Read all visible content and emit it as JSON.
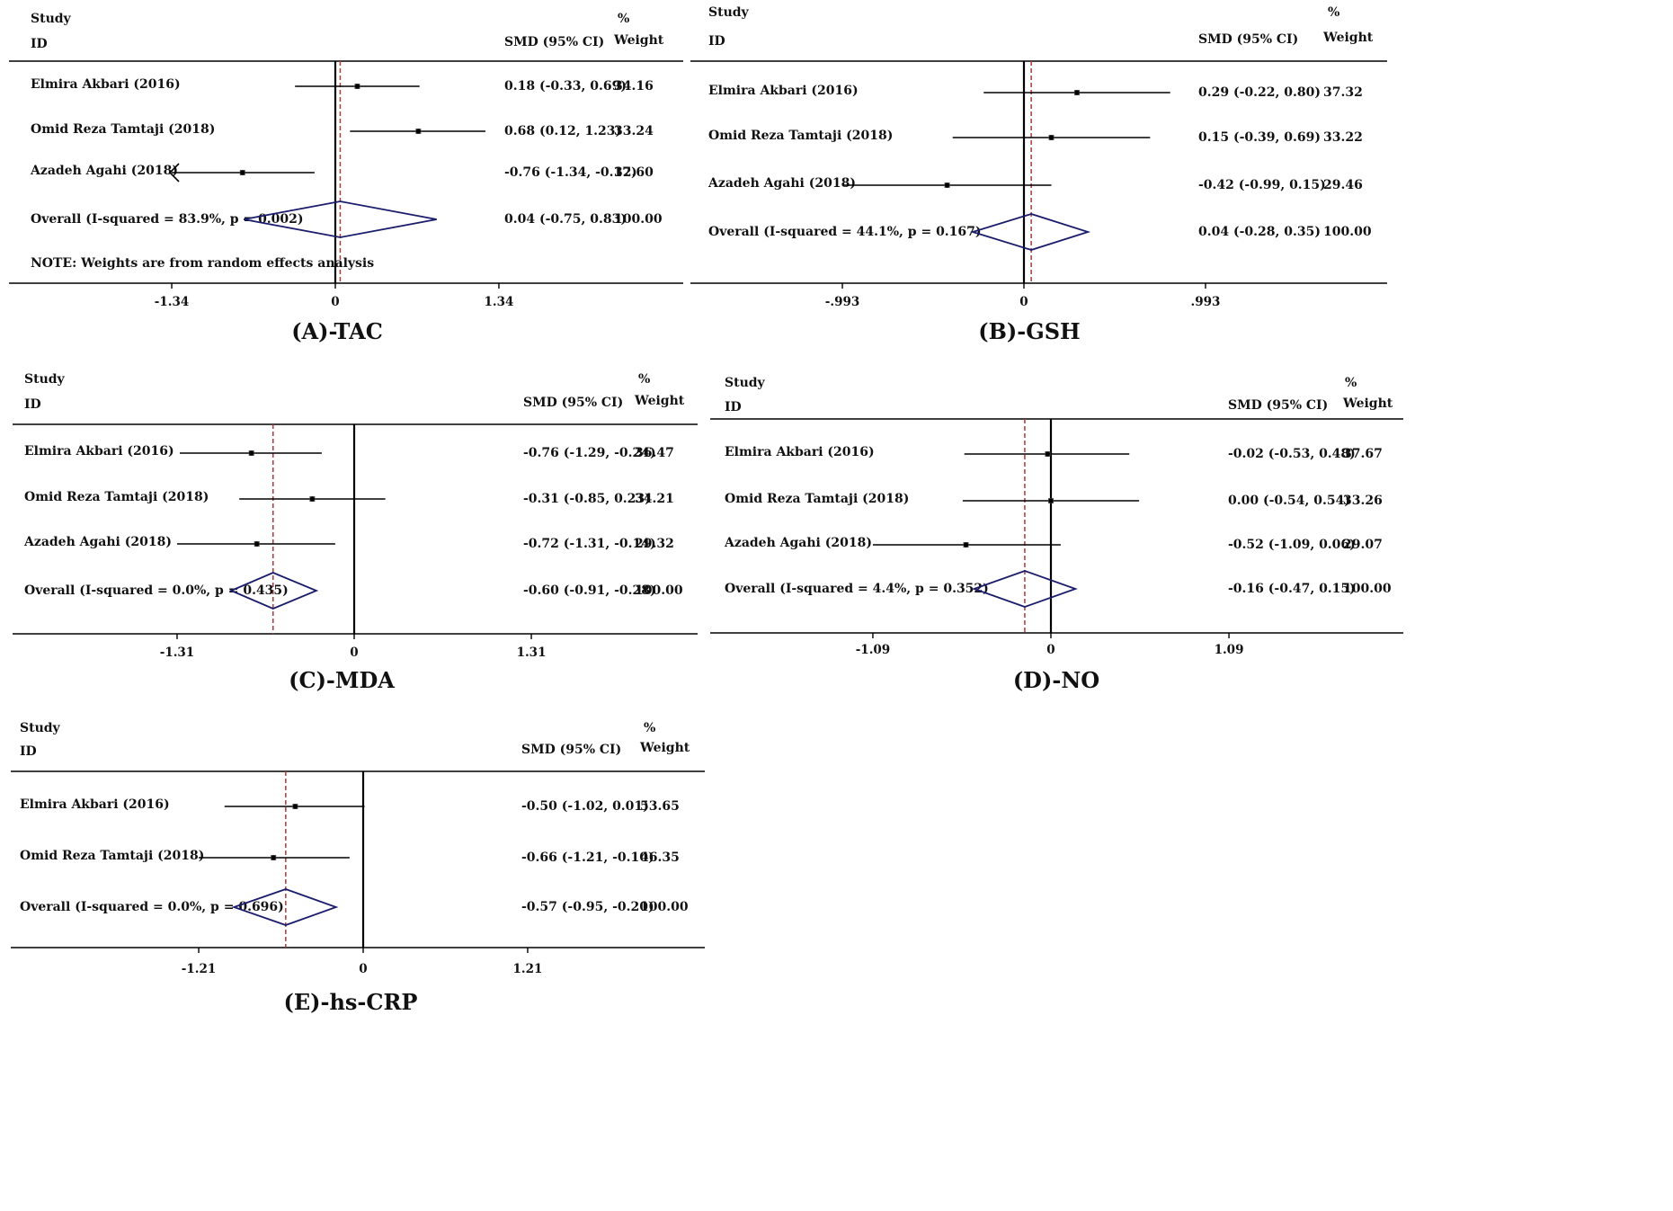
{
  "chart_data": [
    {
      "type": "forest",
      "caption": "(A)-TAC",
      "header": {
        "study": "Study",
        "id": "ID",
        "effect": "SMD (95% CI)",
        "pct": "%",
        "weight": "Weight"
      },
      "studies": [
        {
          "label": "Elmira Akbari (2016)",
          "smd": 0.18,
          "lo": -0.33,
          "hi": 0.69,
          "ci_text": "0.18 (-0.33, 0.69)",
          "weight": "34.16"
        },
        {
          "label": "Omid Reza Tamtaji (2018)",
          "smd": 0.68,
          "lo": 0.12,
          "hi": 1.23,
          "ci_text": "0.68 (0.12, 1.23)",
          "weight": "33.24"
        },
        {
          "label": "Azadeh Agahi (2018)",
          "smd": -0.76,
          "lo": -1.34,
          "hi": -0.17,
          "ci_text": "-0.76 (-1.34, -0.17)",
          "weight": "32.60"
        }
      ],
      "overall": {
        "label": "Overall (I-squared = 83.9%, p = 0.002)",
        "smd": 0.04,
        "lo": -0.75,
        "hi": 0.83,
        "ci_text": "0.04 (-0.75, 0.83)",
        "weight": "100.00"
      },
      "note": "NOTE: Weights are from random effects analysis",
      "axis": {
        "min": -1.34,
        "max": 1.34,
        "ticks": [
          "-1.34",
          "0",
          "1.34"
        ]
      }
    },
    {
      "type": "forest",
      "caption": "(B)-GSH",
      "header": {
        "study": "Study",
        "id": "ID",
        "effect": "SMD (95% CI)",
        "pct": "%",
        "weight": "Weight"
      },
      "studies": [
        {
          "label": "Elmira Akbari (2016)",
          "smd": 0.29,
          "lo": -0.22,
          "hi": 0.8,
          "ci_text": "0.29 (-0.22, 0.80)",
          "weight": "37.32"
        },
        {
          "label": "Omid Reza Tamtaji (2018)",
          "smd": 0.15,
          "lo": -0.39,
          "hi": 0.69,
          "ci_text": "0.15 (-0.39, 0.69)",
          "weight": "33.22"
        },
        {
          "label": "Azadeh Agahi (2018)",
          "smd": -0.42,
          "lo": -0.99,
          "hi": 0.15,
          "ci_text": "-0.42 (-0.99, 0.15)",
          "weight": "29.46"
        }
      ],
      "overall": {
        "label": "Overall (I-squared = 44.1%, p = 0.167)",
        "smd": 0.04,
        "lo": -0.28,
        "hi": 0.35,
        "ci_text": "0.04 (-0.28, 0.35)",
        "weight": "100.00"
      },
      "note": "",
      "axis": {
        "min": -0.993,
        "max": 0.993,
        "ticks": [
          "-.993",
          "0",
          ".993"
        ]
      }
    },
    {
      "type": "forest",
      "caption": "(C)-MDA",
      "header": {
        "study": "Study",
        "id": "ID",
        "effect": "SMD (95% CI)",
        "pct": "%",
        "weight": "Weight"
      },
      "studies": [
        {
          "label": "Elmira Akbari (2016)",
          "smd": -0.76,
          "lo": -1.29,
          "hi": -0.24,
          "ci_text": "-0.76 (-1.29, -0.24)",
          "weight": "36.47"
        },
        {
          "label": "Omid Reza Tamtaji (2018)",
          "smd": -0.31,
          "lo": -0.85,
          "hi": 0.23,
          "ci_text": "-0.31 (-0.85, 0.23)",
          "weight": "34.21"
        },
        {
          "label": "Azadeh Agahi (2018)",
          "smd": -0.72,
          "lo": -1.31,
          "hi": -0.14,
          "ci_text": "-0.72 (-1.31, -0.14)",
          "weight": "29.32"
        }
      ],
      "overall": {
        "label": "Overall (I-squared = 0.0%, p = 0.435)",
        "smd": -0.6,
        "lo": -0.91,
        "hi": -0.28,
        "ci_text": "-0.60 (-0.91, -0.28)",
        "weight": "100.00"
      },
      "note": "",
      "axis": {
        "min": -1.31,
        "max": 1.31,
        "ticks": [
          "-1.31",
          "0",
          "1.31"
        ]
      }
    },
    {
      "type": "forest",
      "caption": "(D)-NO",
      "header": {
        "study": "Study",
        "id": "ID",
        "effect": "SMD (95% CI)",
        "pct": "%",
        "weight": "Weight"
      },
      "studies": [
        {
          "label": "Elmira Akbari (2016)",
          "smd": -0.02,
          "lo": -0.53,
          "hi": 0.48,
          "ci_text": "-0.02 (-0.53, 0.48)",
          "weight": "37.67"
        },
        {
          "label": "Omid Reza Tamtaji (2018)",
          "smd": 0.0,
          "lo": -0.54,
          "hi": 0.54,
          "ci_text": "0.00 (-0.54, 0.54)",
          "weight": "33.26"
        },
        {
          "label": "Azadeh Agahi (2018)",
          "smd": -0.52,
          "lo": -1.09,
          "hi": 0.06,
          "ci_text": "-0.52 (-1.09, 0.06)",
          "weight": "29.07"
        }
      ],
      "overall": {
        "label": "Overall (I-squared = 4.4%, p = 0.352)",
        "smd": -0.16,
        "lo": -0.47,
        "hi": 0.15,
        "ci_text": "-0.16 (-0.47, 0.15)",
        "weight": "100.00"
      },
      "note": "",
      "axis": {
        "min": -1.09,
        "max": 1.09,
        "ticks": [
          "-1.09",
          "0",
          "1.09"
        ]
      }
    },
    {
      "type": "forest",
      "caption": "(E)-hs-CRP",
      "header": {
        "study": "Study",
        "id": "ID",
        "effect": "SMD (95% CI)",
        "pct": "%",
        "weight": "Weight"
      },
      "studies": [
        {
          "label": "Elmira Akbari (2016)",
          "smd": -0.5,
          "lo": -1.02,
          "hi": 0.01,
          "ci_text": "-0.50 (-1.02, 0.01)",
          "weight": "53.65"
        },
        {
          "label": "Omid Reza Tamtaji (2018)",
          "smd": -0.66,
          "lo": -1.21,
          "hi": -0.1,
          "ci_text": "-0.66 (-1.21, -0.10)",
          "weight": "46.35"
        }
      ],
      "overall": {
        "label": "Overall (I-squared = 0.0%, p = 0.696)",
        "smd": -0.57,
        "lo": -0.95,
        "hi": -0.2,
        "ci_text": "-0.57 (-0.95, -0.20)",
        "weight": "100.00"
      },
      "note": "",
      "axis": {
        "min": -1.21,
        "max": 1.21,
        "ticks": [
          "-1.21",
          "0",
          "1.21"
        ]
      }
    }
  ],
  "colors": {
    "axis": "#000000",
    "ci": "#000000",
    "diamond": "#1a1d6b",
    "ref": "#b03a3a",
    "text": "#111111"
  }
}
